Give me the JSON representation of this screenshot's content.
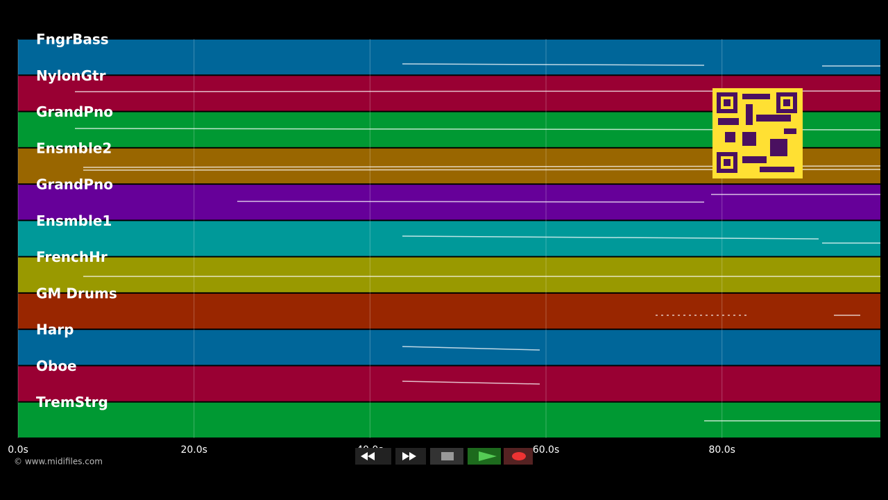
{
  "tracks": [
    {
      "name": "FngrBass",
      "color": "#006699"
    },
    {
      "name": "NylonGtr",
      "color": "#990033"
    },
    {
      "name": "GrandPno",
      "color": "#009933"
    },
    {
      "name": "Ensmble2",
      "color": "#996600"
    },
    {
      "name": "GrandPno",
      "color": "#660099"
    },
    {
      "name": "Ensmble1",
      "color": "#009999"
    },
    {
      "name": "FrenchHr",
      "color": "#999900"
    },
    {
      "name": "GM Drums",
      "color": "#992600"
    },
    {
      "name": "Harp",
      "color": "#006699"
    },
    {
      "name": "Oboe",
      "color": "#990033"
    },
    {
      "name": "TremStrg",
      "color": "#009933"
    }
  ],
  "timeline": {
    "xlim": [
      0,
      98
    ],
    "ticks": [
      {
        "value": 0,
        "label": "0.0s"
      },
      {
        "value": 20,
        "label": "20.0s"
      },
      {
        "value": 40,
        "label": "40.0s"
      },
      {
        "value": 60,
        "label": "60.0s"
      },
      {
        "value": 80,
        "label": "80.0s"
      }
    ]
  },
  "credit": "© www.midifiles.com"
}
